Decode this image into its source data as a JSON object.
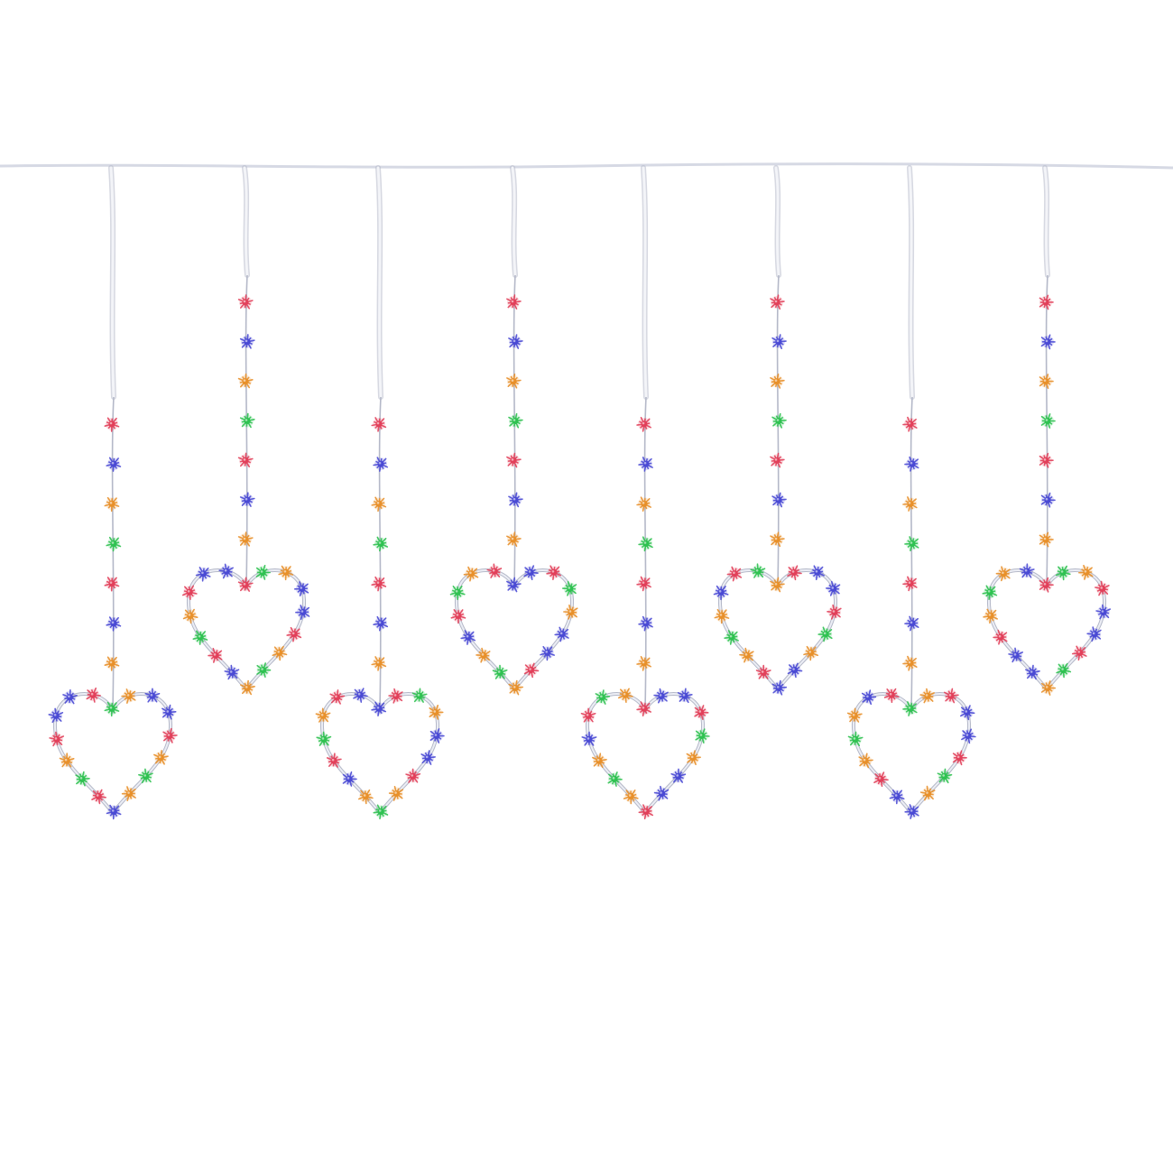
{
  "product": {
    "strand_count": 8,
    "bulbs_per_drop": 7,
    "bulbs_per_heart": 16,
    "colors": {
      "background": "#ffffff",
      "wire": "#d6d9e4",
      "wire_shadow": "#b4b8c8",
      "red": "#e2405a",
      "blue": "#4a4ad4",
      "orange": "#e8902a",
      "green": "#2fc251"
    },
    "bulb_sequence": [
      "red",
      "blue",
      "orange",
      "green"
    ],
    "heart_bulb_colors": [
      "green",
      "red",
      "blue",
      "blue",
      "red",
      "orange",
      "green",
      "red",
      "blue",
      "orange",
      "green",
      "orange",
      "red",
      "blue",
      "blue",
      "orange"
    ],
    "bulb_icon": "starburst-led-icon"
  }
}
